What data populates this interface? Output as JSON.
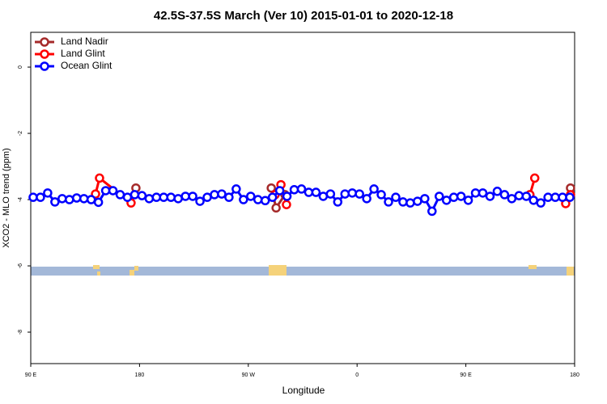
{
  "chart_data": {
    "type": "line",
    "title": "42.5S-37.5S March (Ver 10)   2015-01-01 to 2020-12-18",
    "xlabel": "Longitude",
    "ylabel": "XCO2 - MLO trend (ppm)",
    "xlim": [
      90,
      540
    ],
    "xticks": [
      {
        "value": 90,
        "label": "90 E"
      },
      180,
      {
        "value": 270,
        "label": "90 W"
      },
      {
        "value": 360,
        "label": "0"
      },
      {
        "value": 450,
        "label": "90 E"
      },
      {
        "value": 540,
        "label": "180"
      }
    ],
    "ylim": [
      -8.95,
      1.05
    ],
    "yticks": [
      0,
      -2,
      -4,
      -6,
      -8
    ],
    "legend": "top-left",
    "series": [
      {
        "name": "Land Nadir",
        "color": "#a52a2a",
        "x": [
          177,
          183,
          289,
          293,
          300.3,
          310,
          536.6
        ],
        "values": [
          -3.65,
          null,
          -3.65,
          -4.25,
          -3.85,
          null,
          -3.65
        ]
      },
      {
        "name": "Land Glint",
        "color": "#ff0000",
        "x": [
          143.6,
          146.9,
          173,
          200,
          292.2,
          297,
          301.6,
          400,
          503,
          507,
          520,
          532.6,
          536.6
        ],
        "values": [
          -3.83,
          -3.35,
          -4.1,
          null,
          -3.85,
          -3.55,
          -4.15,
          null,
          -3.85,
          -3.35,
          null,
          -4.12,
          -3.85
        ]
      },
      {
        "name": "Ocean Glint",
        "color": "#0000ff",
        "x": [
          92,
          98,
          104,
          110,
          116,
          122,
          128,
          134,
          140,
          146,
          152,
          158,
          164,
          170,
          176,
          182,
          188,
          194,
          200,
          206,
          212,
          218,
          224,
          230,
          236,
          242,
          248,
          254,
          260,
          266,
          272,
          278,
          284,
          290,
          296,
          302,
          308,
          314,
          320,
          326,
          332,
          338,
          344,
          350,
          356,
          362,
          368,
          374,
          380,
          386,
          392,
          398,
          404,
          410,
          416,
          422,
          428,
          434,
          440,
          446,
          452,
          458,
          464,
          470,
          476,
          482,
          488,
          494,
          500,
          506,
          512,
          518,
          524,
          530,
          536
        ],
        "values": [
          -3.93,
          -3.93,
          -3.8,
          -4.07,
          -3.97,
          -4.0,
          -3.95,
          -3.97,
          -4.0,
          -4.08,
          -3.73,
          -3.73,
          -3.85,
          -3.93,
          -3.85,
          -3.88,
          -3.97,
          -3.93,
          -3.93,
          -3.93,
          -3.97,
          -3.9,
          -3.9,
          -4.05,
          -3.93,
          -3.85,
          -3.83,
          -3.93,
          -3.68,
          -4.0,
          -3.9,
          -4.0,
          -4.03,
          -3.93,
          -3.73,
          -3.9,
          -3.7,
          -3.68,
          -3.78,
          -3.78,
          -3.9,
          -3.83,
          -4.07,
          -3.83,
          -3.8,
          -3.83,
          -3.97,
          -3.68,
          -3.85,
          -4.07,
          -3.93,
          -4.07,
          -4.1,
          -4.05,
          -3.97,
          -4.35,
          -3.9,
          -4.02,
          -3.93,
          -3.9,
          -4.02,
          -3.8,
          -3.8,
          -3.9,
          -3.75,
          -3.85,
          -3.97,
          -3.88,
          -3.9,
          -4.02,
          -4.1,
          -3.93,
          -3.93,
          -3.93,
          -3.93
        ]
      }
    ]
  }
}
